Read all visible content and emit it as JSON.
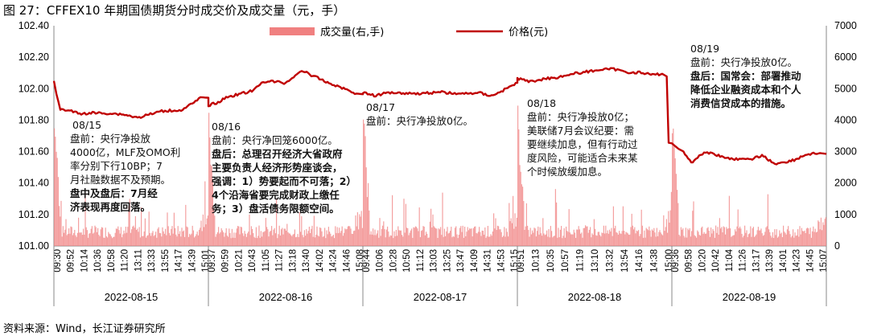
{
  "figure": {
    "title": "图 27：CFFEX10 年期国债期货分时成交价及成交量（元，手）",
    "source": "资料来源：Wind，长江证券研究所"
  },
  "chart_data": {
    "type": "line",
    "y_left": {
      "ticks": [
        "102.40",
        "102.20",
        "102.00",
        "101.80",
        "101.60",
        "101.40",
        "101.20",
        "101.00"
      ],
      "ylim": [
        101.0,
        102.4
      ]
    },
    "y_right": {
      "ticks": [
        "7000",
        "6000",
        "5000",
        "4000",
        "3000",
        "2000",
        "1000",
        "0"
      ],
      "ylim": [
        0,
        7000
      ]
    },
    "colors": {
      "price": "#c00000",
      "volume": "#f08080"
    },
    "series": [
      {
        "name": "成交量(右,手)",
        "type": "bar",
        "axis": "right"
      },
      {
        "name": "价格(元)",
        "type": "line",
        "axis": "left"
      }
    ],
    "days": [
      {
        "date": "2022-08-15",
        "ticks": [
          "09:30",
          "09:52",
          "10:14",
          "10:36",
          "10:58",
          "11:20",
          "13:11",
          "13:33",
          "13:55",
          "14:17",
          "14:39",
          "15:01"
        ],
        "price": [
          [
            0,
            102.05
          ],
          [
            4,
            101.97
          ],
          [
            10,
            101.87
          ],
          [
            25,
            101.86
          ],
          [
            40,
            101.84
          ],
          [
            60,
            101.85
          ],
          [
            90,
            101.84
          ],
          [
            110,
            101.84
          ],
          [
            130,
            101.81
          ],
          [
            150,
            101.84
          ],
          [
            170,
            101.86
          ],
          [
            200,
            101.87
          ],
          [
            230,
            101.94
          ],
          [
            240,
            101.94
          ]
        ]
      },
      {
        "date": "2022-08-16",
        "ticks": [
          "09:37",
          "09:59",
          "10:21",
          "10:43",
          "11:05",
          "11:27",
          "13:18",
          "13:40",
          "14:02",
          "14:24",
          "14:46",
          "15:08"
        ],
        "price": [
          [
            0,
            101.9
          ],
          [
            15,
            101.91
          ],
          [
            30,
            101.95
          ],
          [
            50,
            101.97
          ],
          [
            70,
            101.99
          ],
          [
            85,
            102.04
          ],
          [
            100,
            102.05
          ],
          [
            120,
            102.03
          ],
          [
            135,
            102.08
          ],
          [
            145,
            102.12
          ],
          [
            165,
            102.08
          ],
          [
            185,
            102.04
          ],
          [
            210,
            102.0
          ],
          [
            230,
            101.97
          ],
          [
            240,
            101.97
          ]
        ]
      },
      {
        "date": "2022-08-17",
        "ticks": [
          "09:44",
          "10:06",
          "10:28",
          "10:50",
          "11:12",
          "13:03",
          "13:25",
          "13:47",
          "14:09",
          "14:31",
          "14:53",
          "15:15"
        ],
        "price": [
          [
            0,
            101.97
          ],
          [
            20,
            101.96
          ],
          [
            40,
            101.98
          ],
          [
            60,
            101.97
          ],
          [
            90,
            101.97
          ],
          [
            120,
            101.98
          ],
          [
            150,
            101.97
          ],
          [
            180,
            101.98
          ],
          [
            200,
            101.95
          ],
          [
            220,
            101.99
          ],
          [
            240,
            102.04
          ]
        ]
      },
      {
        "date": "2022-08-18",
        "ticks": [
          "09:51",
          "10:13",
          "10:35",
          "10:57",
          "11:19",
          "13:10",
          "13:32",
          "13:54",
          "14:16",
          "14:38",
          "15:00"
        ],
        "price": [
          [
            0,
            102.07
          ],
          [
            20,
            102.05
          ],
          [
            40,
            102.06
          ],
          [
            60,
            102.07
          ],
          [
            90,
            102.1
          ],
          [
            110,
            102.11
          ],
          [
            130,
            102.12
          ],
          [
            150,
            102.12
          ],
          [
            170,
            102.11
          ],
          [
            190,
            102.1
          ],
          [
            210,
            102.09
          ],
          [
            225,
            102.1
          ],
          [
            232,
            102.08
          ],
          [
            235,
            101.65
          ],
          [
            240,
            101.65
          ]
        ]
      },
      {
        "date": "2022-08-19",
        "ticks": [
          "09:36",
          "09:58",
          "10:20",
          "10:42",
          "11:04",
          "11:26",
          "13:17",
          "13:39",
          "14:01",
          "14:23",
          "14:45",
          "15:07"
        ],
        "price": [
          [
            0,
            101.65
          ],
          [
            10,
            101.62
          ],
          [
            18,
            101.6
          ],
          [
            30,
            101.53
          ],
          [
            45,
            101.58
          ],
          [
            60,
            101.59
          ],
          [
            80,
            101.56
          ],
          [
            100,
            101.55
          ],
          [
            120,
            101.55
          ],
          [
            140,
            101.58
          ],
          [
            160,
            101.52
          ],
          [
            175,
            101.54
          ],
          [
            190,
            101.55
          ],
          [
            210,
            101.58
          ],
          [
            230,
            101.59
          ],
          [
            240,
            101.59
          ]
        ]
      }
    ]
  },
  "annotations": [
    {
      "lines": [
        "08/15",
        "盘前：央行净投放",
        "4000亿，MLF及OMO利",
        "率分别下行10BP；7",
        "月社融数据不及预期。",
        "盘中及盘后：7月经",
        "济表现再度回落。"
      ],
      "bold_lines": [
        5,
        6
      ]
    },
    {
      "lines": [
        "08/16",
        "盘前：央行净回笼6000亿。",
        "盘后：总理召开经济大省政府",
        "主要负责人经济形势座谈会，",
        "强调：1）势要起而不可落；2）",
        "4个沿海省要完成财政上缴任",
        "务；3）盘活债务限额空间。"
      ],
      "bold_lines": [
        2,
        3,
        4,
        5,
        6
      ]
    },
    {
      "lines": [
        "08/17",
        "盘前：央行净投放0亿。"
      ],
      "bold_lines": []
    },
    {
      "lines": [
        "08/18",
        "盘前：央行净投放0亿；",
        "美联储7月会议纪要：需",
        "要继续加息，但有行动过",
        "度风险，可能适合未来某",
        "个时候放缓加息。"
      ],
      "bold_lines": []
    },
    {
      "lines": [
        "08/19",
        "盘前：央行净投放0亿。",
        "盘后：国常会：部署推动",
        "降低企业融资成本和个人",
        "消费信贷成本的措施。"
      ],
      "bold_lines": [
        2,
        3,
        4
      ]
    }
  ]
}
